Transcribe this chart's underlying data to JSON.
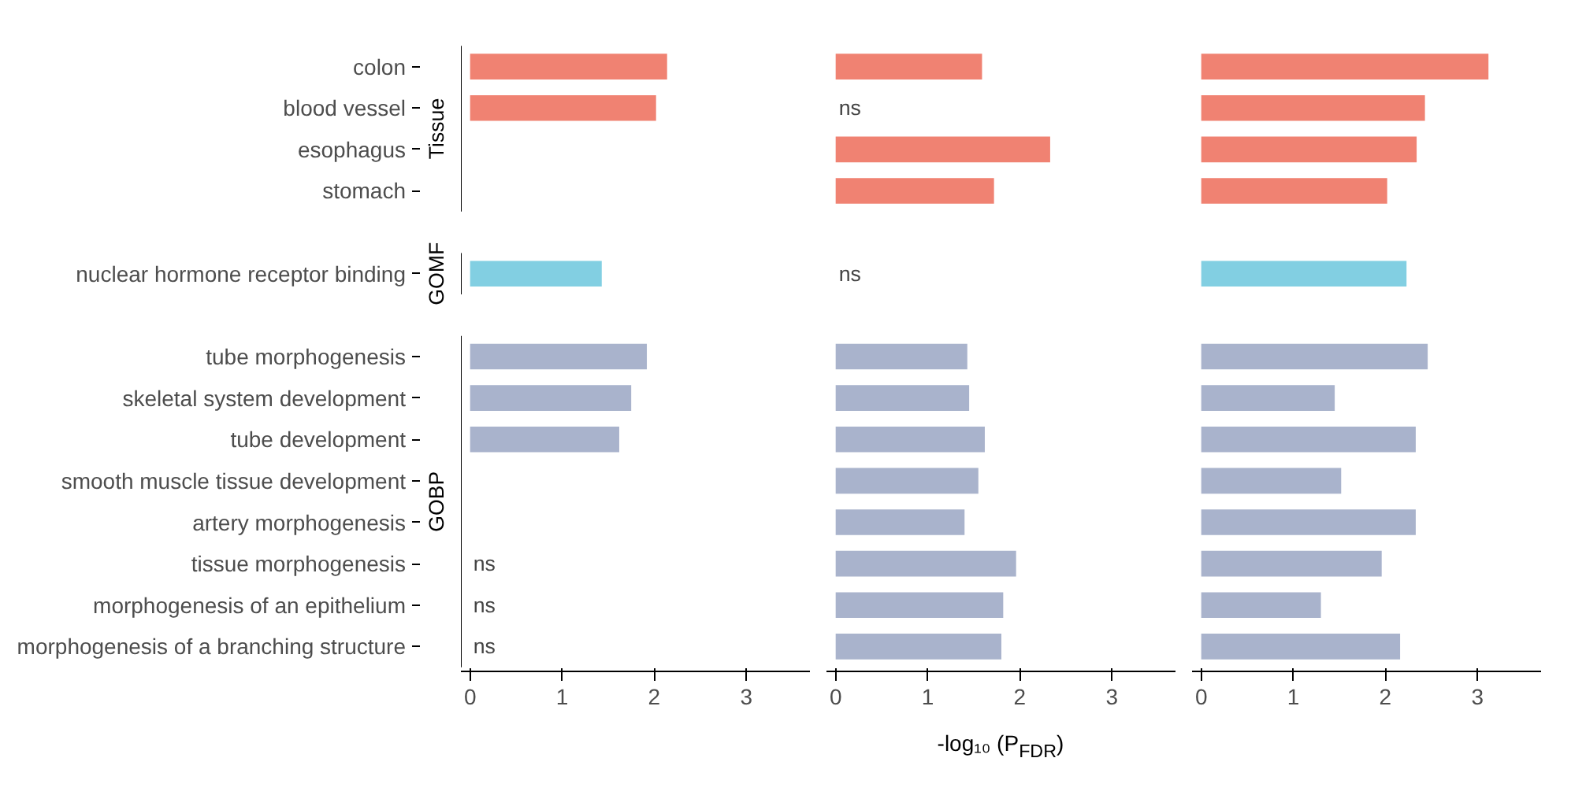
{
  "chart_data": [
    {
      "type": "bar",
      "orientation": "horizontal",
      "categories": [
        "colon",
        "blood vessel",
        "esophagus",
        "stomach",
        null,
        "nuclear hormone receptor binding",
        null,
        "tube morphogenesis",
        "skeletal system development",
        "tube development",
        "smooth muscle tissue development",
        "artery morphogenesis",
        "tissue morphogenesis",
        "morphogenesis of an epithelium",
        "morphogenesis of a branching structure"
      ],
      "series": [
        {
          "colors": [
            "#f08272",
            "#f08272",
            "#f08272",
            "#f08272",
            null,
            "#82cfe2",
            null,
            "#a9b3cc",
            "#a9b3cc",
            "#a9b3cc",
            "#a9b3cc",
            "#a9b3cc",
            "#a9b3cc",
            "#a9b3cc",
            "#a9b3cc"
          ],
          "values": [
            2.14,
            2.02,
            null,
            null,
            null,
            1.43,
            null,
            1.92,
            1.75,
            1.62,
            null,
            null,
            null,
            null,
            null
          ],
          "value_labels": [
            null,
            null,
            null,
            null,
            null,
            null,
            null,
            null,
            null,
            null,
            null,
            null,
            "ns",
            "ns",
            "ns"
          ]
        }
      ],
      "xlim": [
        -0.1,
        3.7
      ],
      "xticks": [
        0,
        1,
        2,
        3
      ],
      "annotations": [
        "Tissue",
        "GOMF",
        "GOBP"
      ]
    },
    {
      "type": "bar",
      "orientation": "horizontal",
      "xlabel": "-log₁₀ (P$_{FDR}$)",
      "series": [
        {
          "colors": [
            "#f08272",
            null,
            "#f08272",
            "#f08272",
            null,
            null,
            null,
            "#a9b3cc",
            "#a9b3cc",
            "#a9b3cc",
            "#a9b3cc",
            "#a9b3cc",
            "#a9b3cc",
            "#a9b3cc",
            "#a9b3cc"
          ],
          "values": [
            1.59,
            null,
            2.33,
            1.72,
            null,
            null,
            null,
            1.43,
            1.45,
            1.62,
            1.55,
            1.4,
            1.96,
            1.82,
            1.8
          ],
          "value_labels": [
            null,
            "ns",
            null,
            null,
            null,
            "ns",
            null,
            null,
            null,
            null,
            null,
            null,
            null,
            null,
            null
          ]
        }
      ],
      "xlim": [
        -0.1,
        3.7
      ],
      "xticks": [
        0,
        1,
        2,
        3
      ],
      "tick_labels": "x"
    },
    {
      "type": "bar",
      "orientation": "horizontal",
      "series": [
        {
          "colors": [
            "#f08272",
            "#f08272",
            "#f08272",
            "#f08272",
            null,
            "#82cfe2",
            null,
            "#a9b3cc",
            "#a9b3cc",
            "#a9b3cc",
            "#a9b3cc",
            "#a9b3cc",
            "#a9b3cc",
            "#a9b3cc",
            "#a9b3cc"
          ],
          "values": [
            3.12,
            2.43,
            2.34,
            2.02,
            null,
            2.23,
            null,
            2.46,
            1.45,
            2.33,
            1.52,
            2.33,
            1.96,
            1.3,
            2.16
          ]
        }
      ],
      "xlim": [
        -0.1,
        3.7
      ],
      "xticks": [
        0,
        1,
        2,
        3
      ],
      "tick_labels": "x"
    }
  ]
}
